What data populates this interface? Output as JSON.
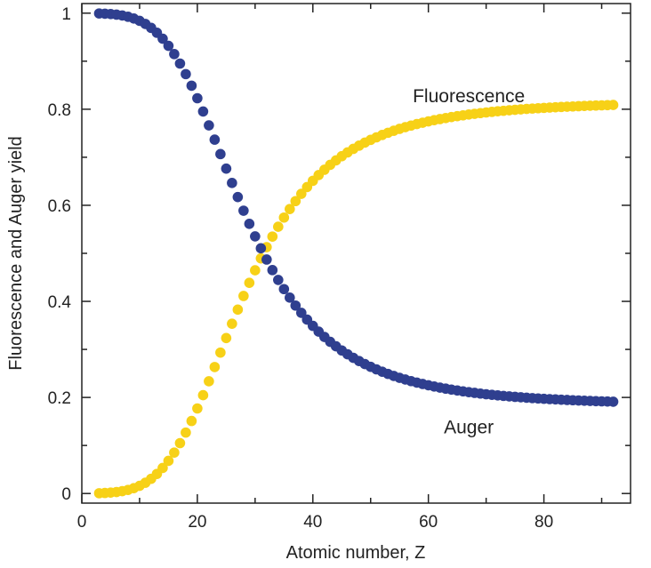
{
  "chart_data": {
    "type": "scatter",
    "xlabel": "Atomic number, Z",
    "ylabel": "Fluorescence and Auger yield",
    "xlim": [
      0,
      95
    ],
    "ylim": [
      -0.02,
      1.02
    ],
    "x_ticks": [
      0,
      20,
      40,
      60,
      80
    ],
    "x_tick_labels": [
      "0",
      "20",
      "40",
      "60",
      "80"
    ],
    "y_ticks": [
      0,
      0.2,
      0.4,
      0.6,
      0.8,
      1
    ],
    "y_tick_labels": [
      "0",
      "0.2",
      "0.4",
      "0.6",
      "0.8",
      "1"
    ],
    "grid": false,
    "x": [
      3,
      4,
      5,
      6,
      7,
      8,
      9,
      10,
      11,
      12,
      13,
      14,
      15,
      16,
      17,
      18,
      19,
      20,
      21,
      22,
      23,
      24,
      25,
      26,
      27,
      28,
      29,
      30,
      31,
      32,
      33,
      34,
      35,
      36,
      37,
      38,
      39,
      40,
      41,
      42,
      43,
      44,
      45,
      46,
      47,
      48,
      49,
      50,
      51,
      52,
      53,
      54,
      55,
      56,
      57,
      58,
      59,
      60,
      61,
      62,
      63,
      64,
      65,
      66,
      67,
      68,
      69,
      70,
      71,
      72,
      73,
      74,
      75,
      76,
      77,
      78,
      79,
      80,
      81,
      82,
      83,
      84,
      85,
      86,
      87,
      88,
      89,
      90,
      91,
      92
    ],
    "series": [
      {
        "name": "Fluorescence",
        "color": "#f7d117",
        "values": [
          0.0006,
          0.0011,
          0.0019,
          0.0031,
          0.0049,
          0.0075,
          0.0111,
          0.016,
          0.0224,
          0.0306,
          0.0408,
          0.0532,
          0.068,
          0.0852,
          0.1049,
          0.1269,
          0.151,
          0.1771,
          0.2047,
          0.2336,
          0.2633,
          0.2934,
          0.3236,
          0.3535,
          0.3828,
          0.4112,
          0.4386,
          0.4647,
          0.4895,
          0.5129,
          0.5349,
          0.5554,
          0.5745,
          0.5922,
          0.6087,
          0.6239,
          0.638,
          0.651,
          0.663,
          0.674,
          0.6842,
          0.6935,
          0.7022,
          0.7101,
          0.7175,
          0.7242,
          0.7305,
          0.7362,
          0.7415,
          0.7464,
          0.751,
          0.7552,
          0.7591,
          0.7627,
          0.766,
          0.7691,
          0.772,
          0.7747,
          0.7772,
          0.7795,
          0.7817,
          0.7837,
          0.7856,
          0.7873,
          0.789,
          0.7905,
          0.7919,
          0.7933,
          0.7945,
          0.7957,
          0.7968,
          0.7978,
          0.7988,
          0.7997,
          0.8006,
          0.8014,
          0.8021,
          0.8028,
          0.8035,
          0.8041,
          0.8047,
          0.8053,
          0.8058,
          0.8063,
          0.8068,
          0.8073,
          0.8077,
          0.8081,
          0.8085,
          0.8089
        ]
      },
      {
        "name": "Auger",
        "color": "#2f3f8f",
        "values": [
          0.9994,
          0.9989,
          0.9981,
          0.9969,
          0.9951,
          0.9925,
          0.9889,
          0.984,
          0.9776,
          0.9694,
          0.9592,
          0.9468,
          0.932,
          0.9148,
          0.8951,
          0.8731,
          0.849,
          0.8229,
          0.7953,
          0.7664,
          0.7367,
          0.7066,
          0.6764,
          0.6465,
          0.6172,
          0.5888,
          0.5614,
          0.5353,
          0.5105,
          0.4871,
          0.4651,
          0.4446,
          0.4255,
          0.4078,
          0.3913,
          0.3761,
          0.362,
          0.349,
          0.337,
          0.326,
          0.3158,
          0.3065,
          0.2978,
          0.2899,
          0.2825,
          0.2758,
          0.2695,
          0.2638,
          0.2585,
          0.2536,
          0.249,
          0.2448,
          0.2409,
          0.2373,
          0.234,
          0.2309,
          0.228,
          0.2253,
          0.2228,
          0.2205,
          0.2183,
          0.2163,
          0.2144,
          0.2127,
          0.211,
          0.2095,
          0.2081,
          0.2067,
          0.2055,
          0.2043,
          0.2032,
          0.2022,
          0.2012,
          0.2003,
          0.1994,
          0.1986,
          0.1979,
          0.1972,
          0.1965,
          0.1959,
          0.1953,
          0.1947,
          0.1942,
          0.1937,
          0.1932,
          0.1927,
          0.1923,
          0.1919,
          0.1915,
          0.1911
        ]
      }
    ],
    "annotations": [
      {
        "text": "Fluorescence",
        "x": 67,
        "y": 0.815
      },
      {
        "text": "Auger",
        "x": 67,
        "y": 0.125
      }
    ]
  }
}
